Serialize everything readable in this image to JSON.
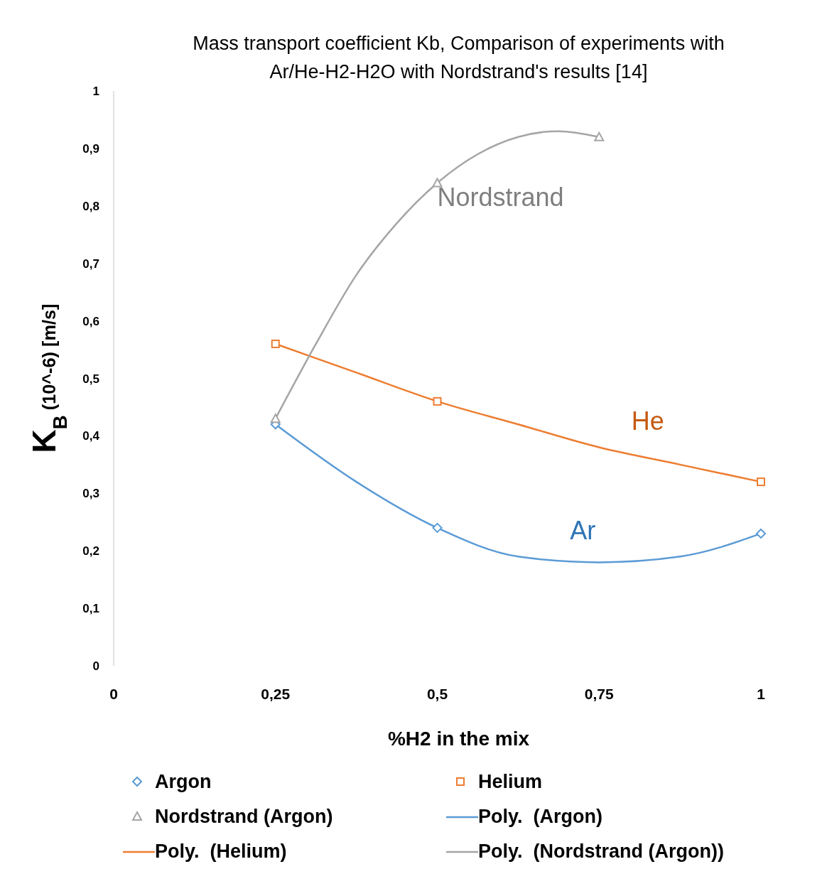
{
  "chart_data": {
    "type": "scatter",
    "title": "Mass transport coefficient Kb, Comparison of experiments with Ar/He-H2-H2O with Nordstrand's results [14]",
    "xlabel": "%H2 in the mix",
    "ylabel": "K$_{B}$ (10^-6) [m/s]",
    "xlim": [
      0,
      1
    ],
    "ylim": [
      0,
      1
    ],
    "xticks": [
      0,
      {
        "value": 0.25,
        "label": "0,25"
      },
      {
        "value": 0.5,
        "label": "0,5"
      },
      {
        "value": 0.75,
        "label": "0,75"
      },
      1
    ],
    "yticks": [
      0,
      {
        "value": 0.1,
        "label": "0,1"
      },
      {
        "value": 0.2,
        "label": "0,2"
      },
      {
        "value": 0.3,
        "label": "0,3"
      },
      {
        "value": 0.4,
        "label": "0,4"
      },
      {
        "value": 0.5,
        "label": "0,5"
      },
      {
        "value": 0.6,
        "label": "0,6"
      },
      {
        "value": 0.7,
        "label": "0,7"
      },
      {
        "value": 0.8,
        "label": "0,8"
      },
      {
        "value": 0.9,
        "label": "0,9"
      },
      1
    ],
    "grid": false,
    "legend": "bottom",
    "series": [
      {
        "name": "Argon",
        "marker": "diamond",
        "color": "#5b9bd5",
        "x": [
          0.25,
          0.5,
          1
        ],
        "values": [
          0.42,
          0.24,
          0.23
        ]
      },
      {
        "name": "Helium",
        "marker": "square",
        "color": "#ed7d31",
        "x": [
          0.25,
          0.5,
          1
        ],
        "values": [
          0.56,
          0.46,
          0.32
        ]
      },
      {
        "name": "Nordstrand (Argon)",
        "marker": "triangle",
        "color": "#a5a5a5",
        "x": [
          0.25,
          0.5,
          0.75
        ],
        "values": [
          0.43,
          0.84,
          0.92
        ]
      },
      {
        "name": "Poly.  (Argon)",
        "type": "line",
        "marker": "none",
        "color": "#5b9bd5",
        "x": [
          0.25,
          0.375,
          0.5,
          0.625,
          0.75,
          0.875,
          1
        ],
        "values": [
          0.42,
          0.32,
          0.24,
          0.19,
          0.18,
          0.19,
          0.23
        ]
      },
      {
        "name": "Poly.  (Helium)",
        "type": "line",
        "marker": "none",
        "color": "#ed7d31",
        "x": [
          0.25,
          0.375,
          0.5,
          0.625,
          0.75,
          0.875,
          1
        ],
        "values": [
          0.56,
          0.51,
          0.46,
          0.42,
          0.38,
          0.35,
          0.32
        ]
      },
      {
        "name": "Poly.  (Nordstrand (Argon))",
        "type": "line",
        "marker": "none",
        "color": "#a5a5a5",
        "x": [
          0.25,
          0.3125,
          0.375,
          0.4375,
          0.5,
          0.5625,
          0.625,
          0.6875,
          0.75
        ],
        "values": [
          0.43,
          0.56,
          0.68,
          0.77,
          0.84,
          0.89,
          0.92,
          0.93,
          0.92
        ]
      }
    ],
    "annotations": [
      "Nordstrand",
      "He",
      "Ar"
    ]
  }
}
